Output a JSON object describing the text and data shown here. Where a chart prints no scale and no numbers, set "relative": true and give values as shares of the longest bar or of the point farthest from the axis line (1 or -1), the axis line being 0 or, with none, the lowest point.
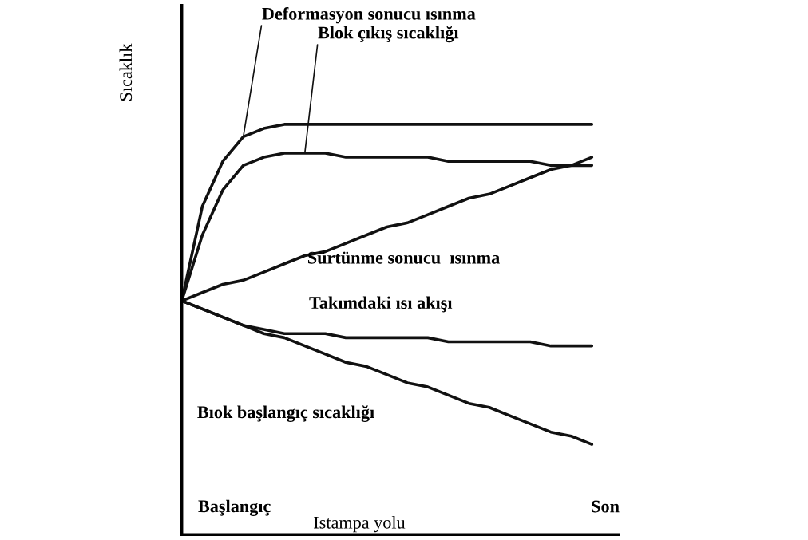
{
  "chart_data": {
    "type": "line",
    "relative": true,
    "ylabel": "Sıcaklık",
    "xlabel": "Istampa yolu",
    "annotations": [
      "Başlangıç",
      "Son"
    ],
    "categories": [
      null,
      null,
      null,
      null,
      null,
      null,
      null,
      null,
      null,
      null,
      null,
      null,
      null,
      null,
      null,
      null,
      null,
      null,
      null,
      null,
      null
    ],
    "series": [
      {
        "name": "Deformasyon sonucu ısınma",
        "color": "#111111",
        "values": [
          0.57,
          0.8,
          0.91,
          0.97,
          0.99,
          1.0,
          1.0,
          1.0,
          1.0,
          1.0,
          1.0,
          1.0,
          1.0,
          1.0,
          1.0,
          1.0,
          1.0,
          1.0,
          1.0,
          1.0,
          1.0
        ]
      },
      {
        "name": "Blok çıkış sıcaklığı",
        "color": "#111111",
        "values": [
          0.57,
          0.73,
          0.84,
          0.9,
          0.92,
          0.93,
          0.93,
          0.93,
          0.92,
          0.92,
          0.92,
          0.92,
          0.92,
          0.91,
          0.91,
          0.91,
          0.91,
          0.91,
          0.9,
          0.9,
          0.9
        ]
      },
      {
        "name": "Sürtünme sonucu  ısınma",
        "color": "#111111",
        "values": [
          0.57,
          0.59,
          0.61,
          0.62,
          0.64,
          0.66,
          0.68,
          0.69,
          0.71,
          0.73,
          0.75,
          0.76,
          0.78,
          0.8,
          0.82,
          0.83,
          0.85,
          0.87,
          0.89,
          0.9,
          0.92
        ]
      },
      {
        "name": "Takımdaki ısı akışı",
        "color": "#111111",
        "values": [
          0.57,
          0.55,
          0.53,
          0.51,
          0.5,
          0.49,
          0.49,
          0.49,
          0.48,
          0.48,
          0.48,
          0.48,
          0.48,
          0.47,
          0.47,
          0.47,
          0.47,
          0.47,
          0.46,
          0.46,
          0.46
        ]
      },
      {
        "name": "Bıok başlangıç sıcaklığı",
        "color": "#111111",
        "values": [
          0.57,
          0.55,
          0.53,
          0.51,
          0.49,
          0.48,
          0.46,
          0.44,
          0.42,
          0.41,
          0.39,
          0.37,
          0.36,
          0.34,
          0.32,
          0.31,
          0.29,
          0.27,
          0.25,
          0.24,
          0.22
        ]
      }
    ]
  }
}
